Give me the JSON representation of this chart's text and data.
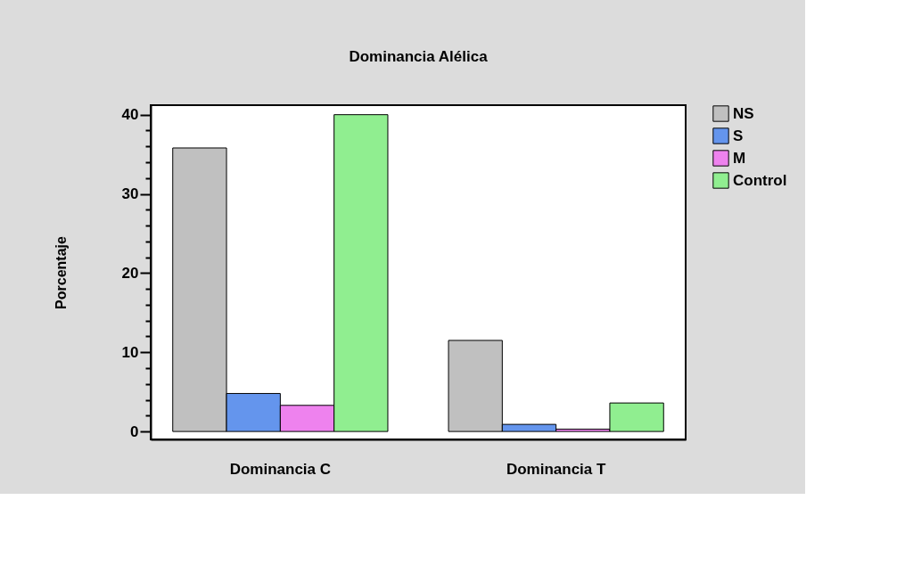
{
  "chart_data": {
    "type": "bar",
    "title": "Dominancia Alélica",
    "ylabel": "Porcentaje",
    "categories": [
      "Dominancia C",
      "Dominancia T"
    ],
    "series": [
      {
        "name": "NS",
        "color": "#c0c0c0",
        "values": [
          35.8,
          11.5
        ]
      },
      {
        "name": "S",
        "color": "#6495ed",
        "values": [
          4.8,
          0.9
        ]
      },
      {
        "name": "M",
        "color": "#ee82ee",
        "values": [
          3.3,
          0.3
        ]
      },
      {
        "name": "Control",
        "color": "#90ee90",
        "values": [
          40.0,
          3.6
        ]
      }
    ],
    "ylim": [
      -1,
      41.2
    ],
    "yticks": [
      0,
      {
        "value": 2,
        "label": null
      },
      {
        "value": 4,
        "label": null
      },
      {
        "value": 6,
        "label": null
      },
      {
        "value": 8,
        "label": null
      },
      10,
      {
        "value": 12,
        "label": null
      },
      {
        "value": 14,
        "label": null
      },
      {
        "value": 16,
        "label": null
      },
      {
        "value": 18,
        "label": null
      },
      20,
      {
        "value": 22,
        "label": null
      },
      {
        "value": 24,
        "label": null
      },
      {
        "value": 26,
        "label": null
      },
      {
        "value": 28,
        "label": null
      },
      30,
      {
        "value": 32,
        "label": null
      },
      {
        "value": 34,
        "label": null
      },
      {
        "value": 36,
        "label": null
      },
      {
        "value": 38,
        "label": null
      },
      40
    ],
    "grid": false,
    "legend": "top right"
  }
}
